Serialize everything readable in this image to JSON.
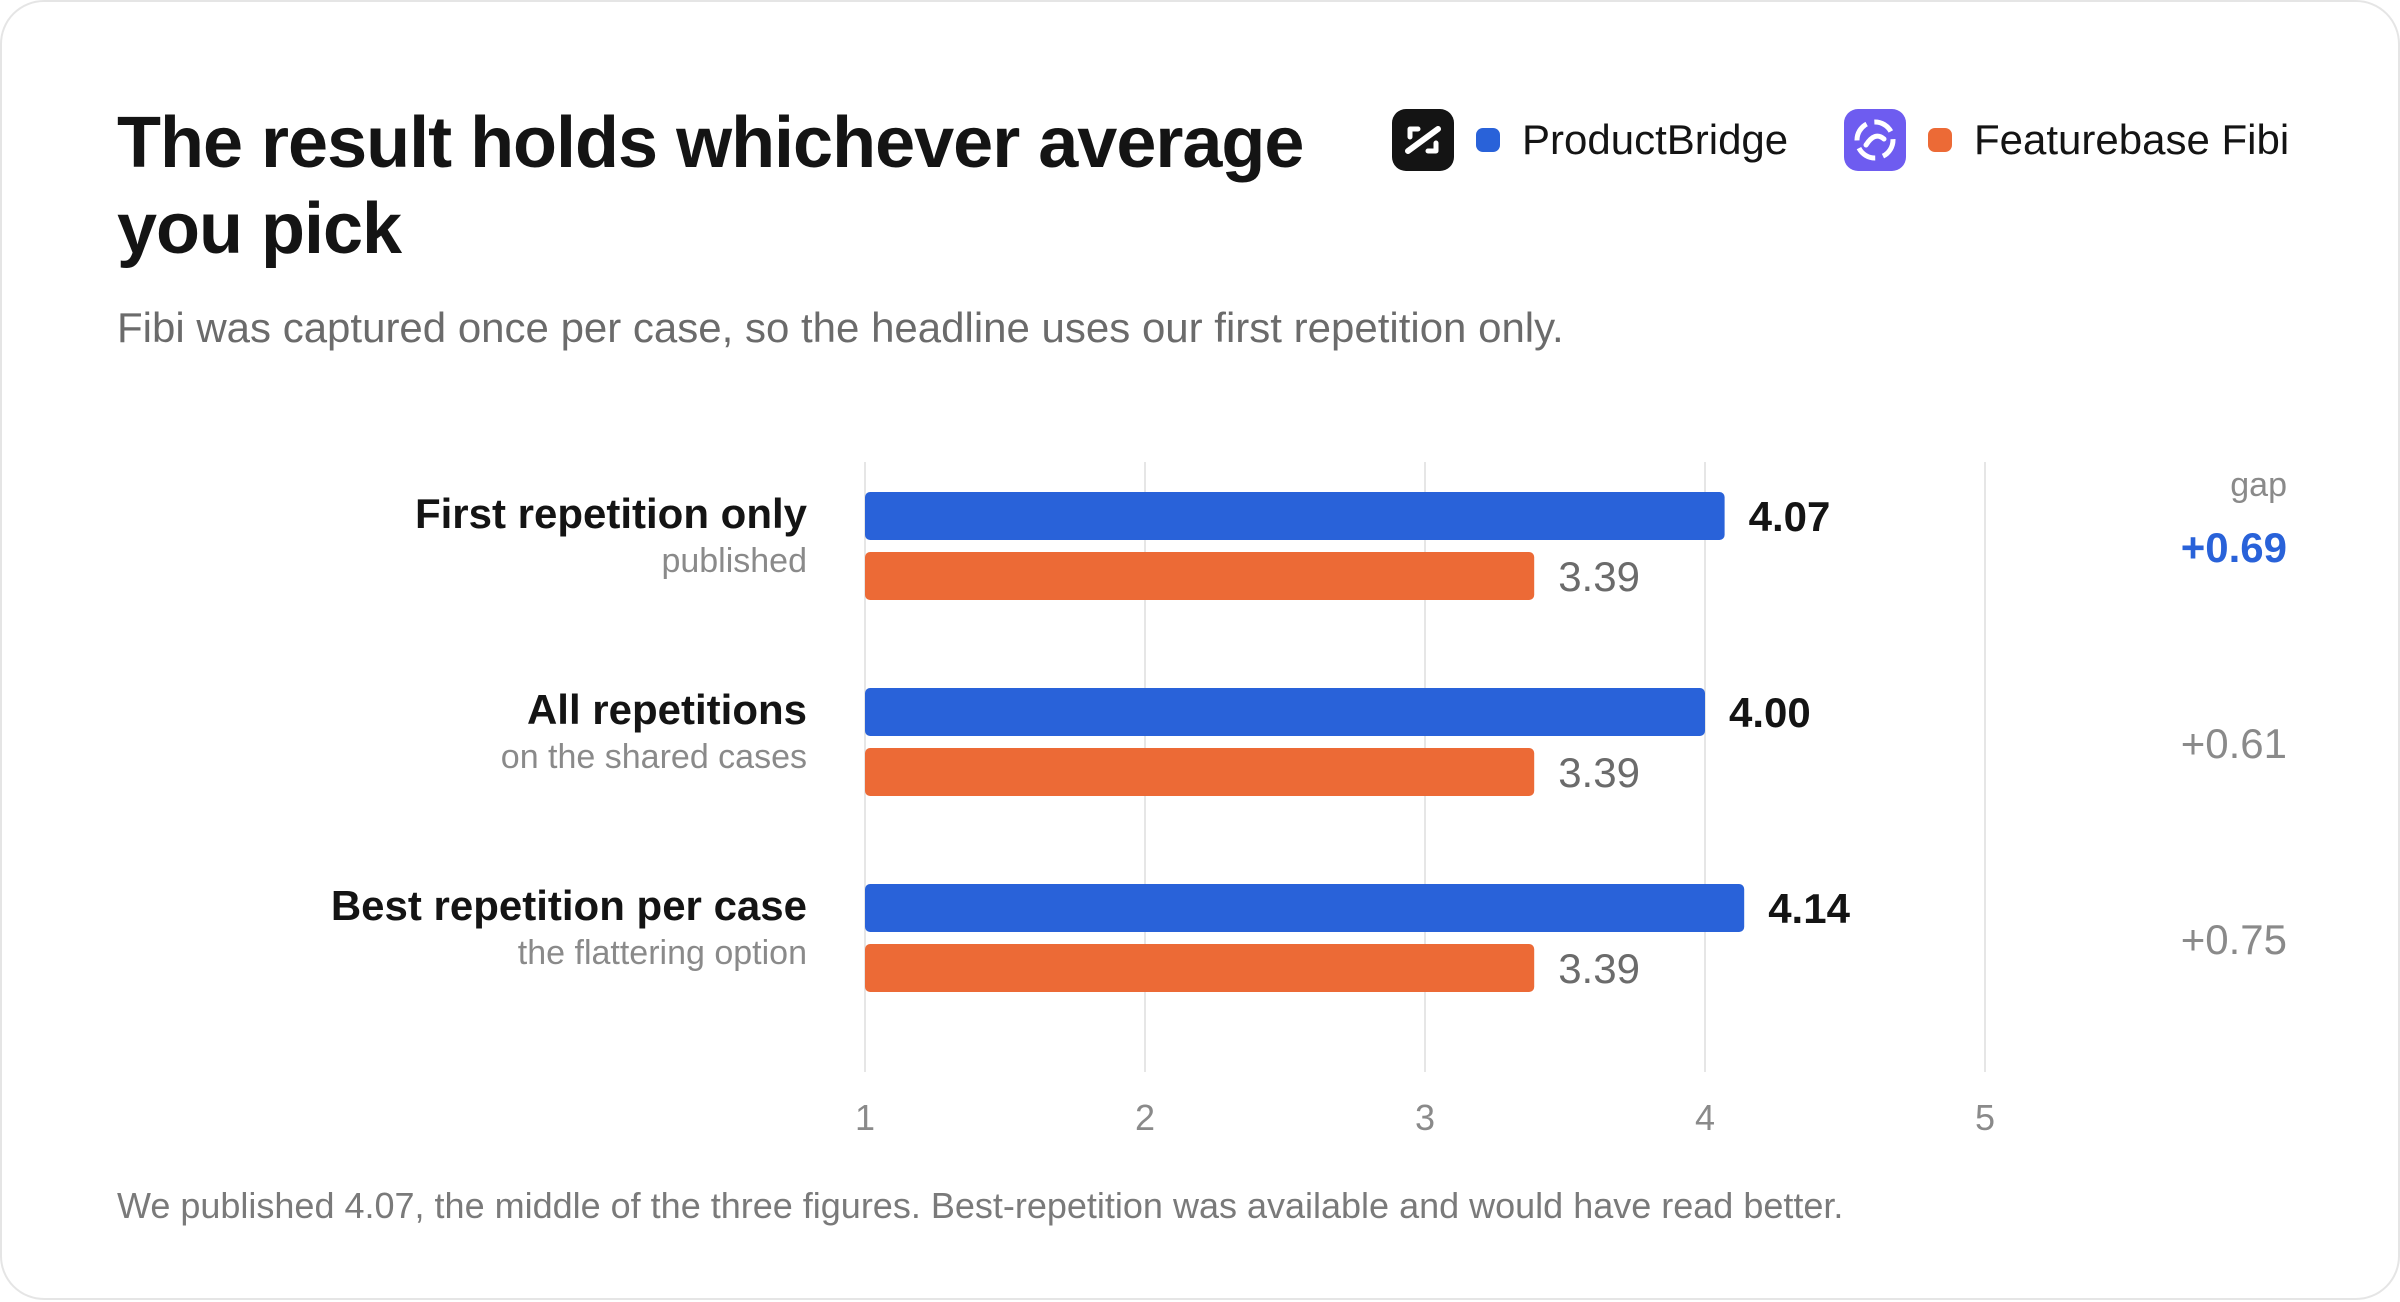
{
  "title": "The result holds whichever average you pick",
  "subtitle": "Fibi was captured once per case, so the headline uses our first repetition only.",
  "footnote": "We published 4.07, the middle of the three figures. Best-repetition was available and would have read better.",
  "legend": [
    {
      "name": "ProductBridge",
      "color": "#2962d9",
      "icon": "productbridge-logo-icon"
    },
    {
      "name": "Featurebase Fibi",
      "color": "#ec6a36",
      "icon": "featurebase-logo-icon"
    }
  ],
  "chart_data": {
    "type": "bar",
    "orientation": "horizontal",
    "title": "The result holds whichever average you pick",
    "xlim": [
      1,
      5
    ],
    "ticks": [
      "1",
      "2",
      "3",
      "4",
      "5"
    ],
    "grid": true,
    "legend_position": "top-right",
    "categories": [
      "First repetition only",
      "All repetitions",
      "Best repetition per case"
    ],
    "category_notes": [
      "published",
      "on the shared cases",
      "the flattering option"
    ],
    "series": [
      {
        "name": "ProductBridge",
        "color": "#2962d9",
        "values": [
          4.07,
          4.0,
          4.14
        ],
        "labels": [
          "4.07",
          "4.00",
          "4.14"
        ]
      },
      {
        "name": "Featurebase Fibi",
        "color": "#ec6a36",
        "values": [
          3.39,
          3.39,
          3.39
        ],
        "labels": [
          "3.39",
          "3.39",
          "3.39"
        ]
      }
    ],
    "gap_header": "gap",
    "gaps": [
      "+0.69",
      "+0.61",
      "+0.75"
    ],
    "highlight_index": 0
  }
}
